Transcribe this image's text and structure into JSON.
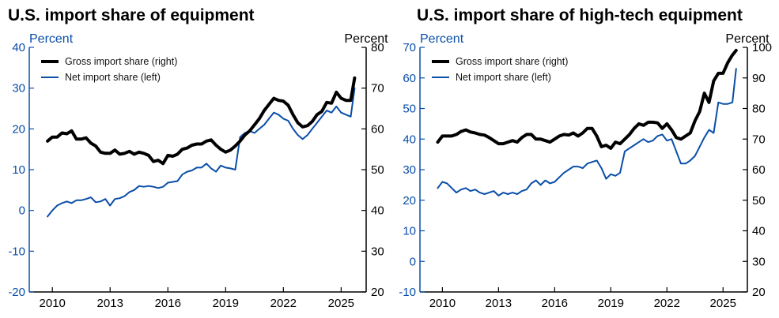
{
  "colors": {
    "gross": "#000000",
    "net": "#0a4ea8",
    "axis": "#000000",
    "left_axis": "#0a4ea8"
  },
  "chart_data": [
    {
      "type": "line",
      "title": "U.S. import share of equipment",
      "left_axis": {
        "label": "Percent",
        "ylim": [
          -20,
          40
        ],
        "ticks": [
          "-20",
          "-10",
          "0",
          "10",
          "20",
          "30",
          "40"
        ]
      },
      "right_axis": {
        "label": "Percent",
        "ylim": [
          20,
          80
        ],
        "ticks": [
          "20",
          "30",
          "40",
          "50",
          "60",
          "70",
          "80"
        ]
      },
      "x_ticks": [
        "2010",
        "2013",
        "2016",
        "2019",
        "2022",
        "2025"
      ],
      "x_tick_values": [
        2010,
        2013,
        2016,
        2019,
        2022,
        2025
      ],
      "xlim": [
        2008.8,
        2026.3
      ],
      "legend_position": "top-left",
      "series": [
        {
          "name": "Gross import share (right)",
          "axis": "right",
          "x": [
            2009.75,
            2010.0,
            2010.25,
            2010.5,
            2010.75,
            2011.0,
            2011.25,
            2011.5,
            2011.75,
            2012.0,
            2012.25,
            2012.5,
            2012.75,
            2013.0,
            2013.25,
            2013.5,
            2013.75,
            2014.0,
            2014.25,
            2014.5,
            2014.75,
            2015.0,
            2015.25,
            2015.5,
            2015.75,
            2016.0,
            2016.25,
            2016.5,
            2016.75,
            2017.0,
            2017.25,
            2017.5,
            2017.75,
            2018.0,
            2018.25,
            2018.5,
            2018.75,
            2019.0,
            2019.25,
            2019.5,
            2019.75,
            2020.0,
            2020.25,
            2020.5,
            2020.75,
            2021.0,
            2021.25,
            2021.5,
            2021.75,
            2022.0,
            2022.25,
            2022.5,
            2022.75,
            2023.0,
            2023.25,
            2023.5,
            2023.75,
            2024.0,
            2024.25,
            2024.5,
            2024.75,
            2025.0,
            2025.25,
            2025.5,
            2025.7
          ],
          "values": [
            57.0,
            58.0,
            58.0,
            59.0,
            58.8,
            59.5,
            57.5,
            57.5,
            57.8,
            56.5,
            55.8,
            54.3,
            54.0,
            54.0,
            54.8,
            53.8,
            54.0,
            54.5,
            53.8,
            54.3,
            54.0,
            53.5,
            52.0,
            52.3,
            51.5,
            53.5,
            53.3,
            53.8,
            55.0,
            55.3,
            56.0,
            56.3,
            56.3,
            57.0,
            57.3,
            56.0,
            55.0,
            54.3,
            54.8,
            55.8,
            57.0,
            58.5,
            59.5,
            61.0,
            62.5,
            64.5,
            66.0,
            67.5,
            67.0,
            66.8,
            65.8,
            63.5,
            61.5,
            60.5,
            60.8,
            61.8,
            63.5,
            64.3,
            66.5,
            66.3,
            69.0,
            67.5,
            67.0,
            67.0,
            72.5
          ]
        },
        {
          "name": "Net import share (left)",
          "axis": "left",
          "x": [
            2009.75,
            2010.0,
            2010.25,
            2010.5,
            2010.75,
            2011.0,
            2011.25,
            2011.5,
            2011.75,
            2012.0,
            2012.25,
            2012.5,
            2012.75,
            2013.0,
            2013.25,
            2013.5,
            2013.75,
            2014.0,
            2014.25,
            2014.5,
            2014.75,
            2015.0,
            2015.25,
            2015.5,
            2015.75,
            2016.0,
            2016.25,
            2016.5,
            2016.75,
            2017.0,
            2017.25,
            2017.5,
            2017.75,
            2018.0,
            2018.25,
            2018.5,
            2018.75,
            2019.0,
            2019.25,
            2019.5,
            2019.75,
            2020.0,
            2020.25,
            2020.5,
            2020.75,
            2021.0,
            2021.25,
            2021.5,
            2021.75,
            2022.0,
            2022.25,
            2022.5,
            2022.75,
            2023.0,
            2023.25,
            2023.5,
            2023.75,
            2024.0,
            2024.25,
            2024.5,
            2024.75,
            2025.0,
            2025.25,
            2025.5,
            2025.7
          ],
          "values": [
            -1.5,
            0.0,
            1.2,
            1.8,
            2.2,
            1.8,
            2.5,
            2.5,
            2.8,
            3.2,
            2.0,
            2.2,
            2.8,
            1.2,
            2.8,
            3.0,
            3.5,
            4.5,
            5.0,
            6.0,
            5.8,
            6.0,
            5.8,
            5.5,
            5.8,
            6.8,
            7.0,
            7.2,
            8.8,
            9.5,
            9.8,
            10.5,
            10.5,
            11.5,
            10.3,
            9.5,
            11.0,
            10.5,
            10.3,
            10.0,
            18.0,
            19.0,
            19.5,
            19.0,
            20.0,
            21.0,
            22.5,
            24.0,
            23.5,
            22.5,
            22.0,
            20.0,
            18.5,
            17.5,
            18.5,
            20.0,
            21.5,
            23.0,
            24.5,
            24.0,
            25.5,
            24.0,
            23.5,
            23.0,
            30.0
          ]
        }
      ]
    },
    {
      "type": "line",
      "title": "U.S. import share of high-tech equipment",
      "left_axis": {
        "label": "Percent",
        "ylim": [
          -10,
          70
        ],
        "ticks": [
          "-10",
          "0",
          "10",
          "20",
          "30",
          "40",
          "50",
          "60",
          "70"
        ]
      },
      "right_axis": {
        "label": "Percent",
        "ylim": [
          20,
          100
        ],
        "ticks": [
          "20",
          "30",
          "40",
          "50",
          "60",
          "70",
          "80",
          "90",
          "100"
        ]
      },
      "x_ticks": [
        "2010",
        "2013",
        "2016",
        "2019",
        "2022",
        "2025"
      ],
      "x_tick_values": [
        2010,
        2013,
        2016,
        2019,
        2022,
        2025
      ],
      "xlim": [
        2008.8,
        2026.3
      ],
      "legend_position": "top-left",
      "series": [
        {
          "name": "Gross import share (right)",
          "axis": "right",
          "x": [
            2009.75,
            2010.0,
            2010.25,
            2010.5,
            2010.75,
            2011.0,
            2011.25,
            2011.5,
            2011.75,
            2012.0,
            2012.25,
            2012.5,
            2012.75,
            2013.0,
            2013.25,
            2013.5,
            2013.75,
            2014.0,
            2014.25,
            2014.5,
            2014.75,
            2015.0,
            2015.25,
            2015.5,
            2015.75,
            2016.0,
            2016.25,
            2016.5,
            2016.75,
            2017.0,
            2017.25,
            2017.5,
            2017.75,
            2018.0,
            2018.25,
            2018.5,
            2018.75,
            2019.0,
            2019.25,
            2019.5,
            2019.75,
            2020.0,
            2020.25,
            2020.5,
            2020.75,
            2021.0,
            2021.25,
            2021.5,
            2021.75,
            2022.0,
            2022.25,
            2022.5,
            2022.75,
            2023.0,
            2023.25,
            2023.5,
            2023.75,
            2024.0,
            2024.25,
            2024.5,
            2024.75,
            2025.0,
            2025.25,
            2025.5,
            2025.7
          ],
          "values": [
            69.0,
            71.0,
            71.0,
            71.0,
            71.5,
            72.5,
            73.0,
            72.3,
            72.0,
            71.5,
            71.3,
            70.5,
            69.5,
            68.5,
            68.5,
            69.0,
            69.5,
            69.0,
            70.5,
            71.5,
            71.5,
            70.0,
            70.0,
            69.5,
            69.0,
            70.0,
            71.0,
            71.5,
            71.3,
            72.0,
            71.0,
            72.0,
            73.5,
            73.5,
            71.0,
            67.5,
            68.0,
            67.0,
            69.0,
            68.5,
            70.0,
            71.5,
            73.5,
            75.0,
            74.5,
            75.5,
            75.5,
            75.3,
            73.5,
            75.0,
            73.0,
            70.5,
            70.0,
            71.0,
            72.0,
            76.0,
            79.0,
            85.0,
            82.0,
            89.0,
            91.5,
            91.5,
            95.0,
            97.5,
            99.0
          ]
        },
        {
          "name": "Net import share (left)",
          "axis": "left",
          "x": [
            2009.75,
            2010.0,
            2010.25,
            2010.5,
            2010.75,
            2011.0,
            2011.25,
            2011.5,
            2011.75,
            2012.0,
            2012.25,
            2012.5,
            2012.75,
            2013.0,
            2013.25,
            2013.5,
            2013.75,
            2014.0,
            2014.25,
            2014.5,
            2014.75,
            2015.0,
            2015.25,
            2015.5,
            2015.75,
            2016.0,
            2016.25,
            2016.5,
            2016.75,
            2017.0,
            2017.25,
            2017.5,
            2017.75,
            2018.0,
            2018.25,
            2018.5,
            2018.75,
            2019.0,
            2019.25,
            2019.5,
            2019.75,
            2020.0,
            2020.25,
            2020.5,
            2020.75,
            2021.0,
            2021.25,
            2021.5,
            2021.75,
            2022.0,
            2022.25,
            2022.5,
            2022.75,
            2023.0,
            2023.25,
            2023.5,
            2023.75,
            2024.0,
            2024.25,
            2024.5,
            2024.75,
            2025.0,
            2025.25,
            2025.5,
            2025.7
          ],
          "values": [
            24.0,
            26.0,
            25.5,
            24.0,
            22.5,
            23.5,
            24.0,
            23.0,
            23.5,
            22.5,
            22.0,
            22.5,
            23.0,
            21.5,
            22.5,
            22.0,
            22.5,
            22.0,
            23.0,
            23.5,
            25.5,
            26.5,
            25.0,
            26.5,
            25.5,
            26.0,
            27.5,
            29.0,
            30.0,
            31.0,
            31.0,
            30.5,
            32.0,
            32.5,
            33.0,
            30.5,
            27.0,
            28.5,
            28.0,
            29.0,
            36.0,
            37.0,
            38.0,
            39.0,
            40.0,
            39.0,
            39.5,
            41.0,
            41.5,
            39.5,
            40.0,
            36.0,
            32.0,
            32.0,
            33.0,
            34.5,
            37.5,
            40.5,
            43.0,
            42.0,
            52.0,
            51.5,
            51.5,
            52.0,
            63.0
          ]
        }
      ]
    }
  ]
}
